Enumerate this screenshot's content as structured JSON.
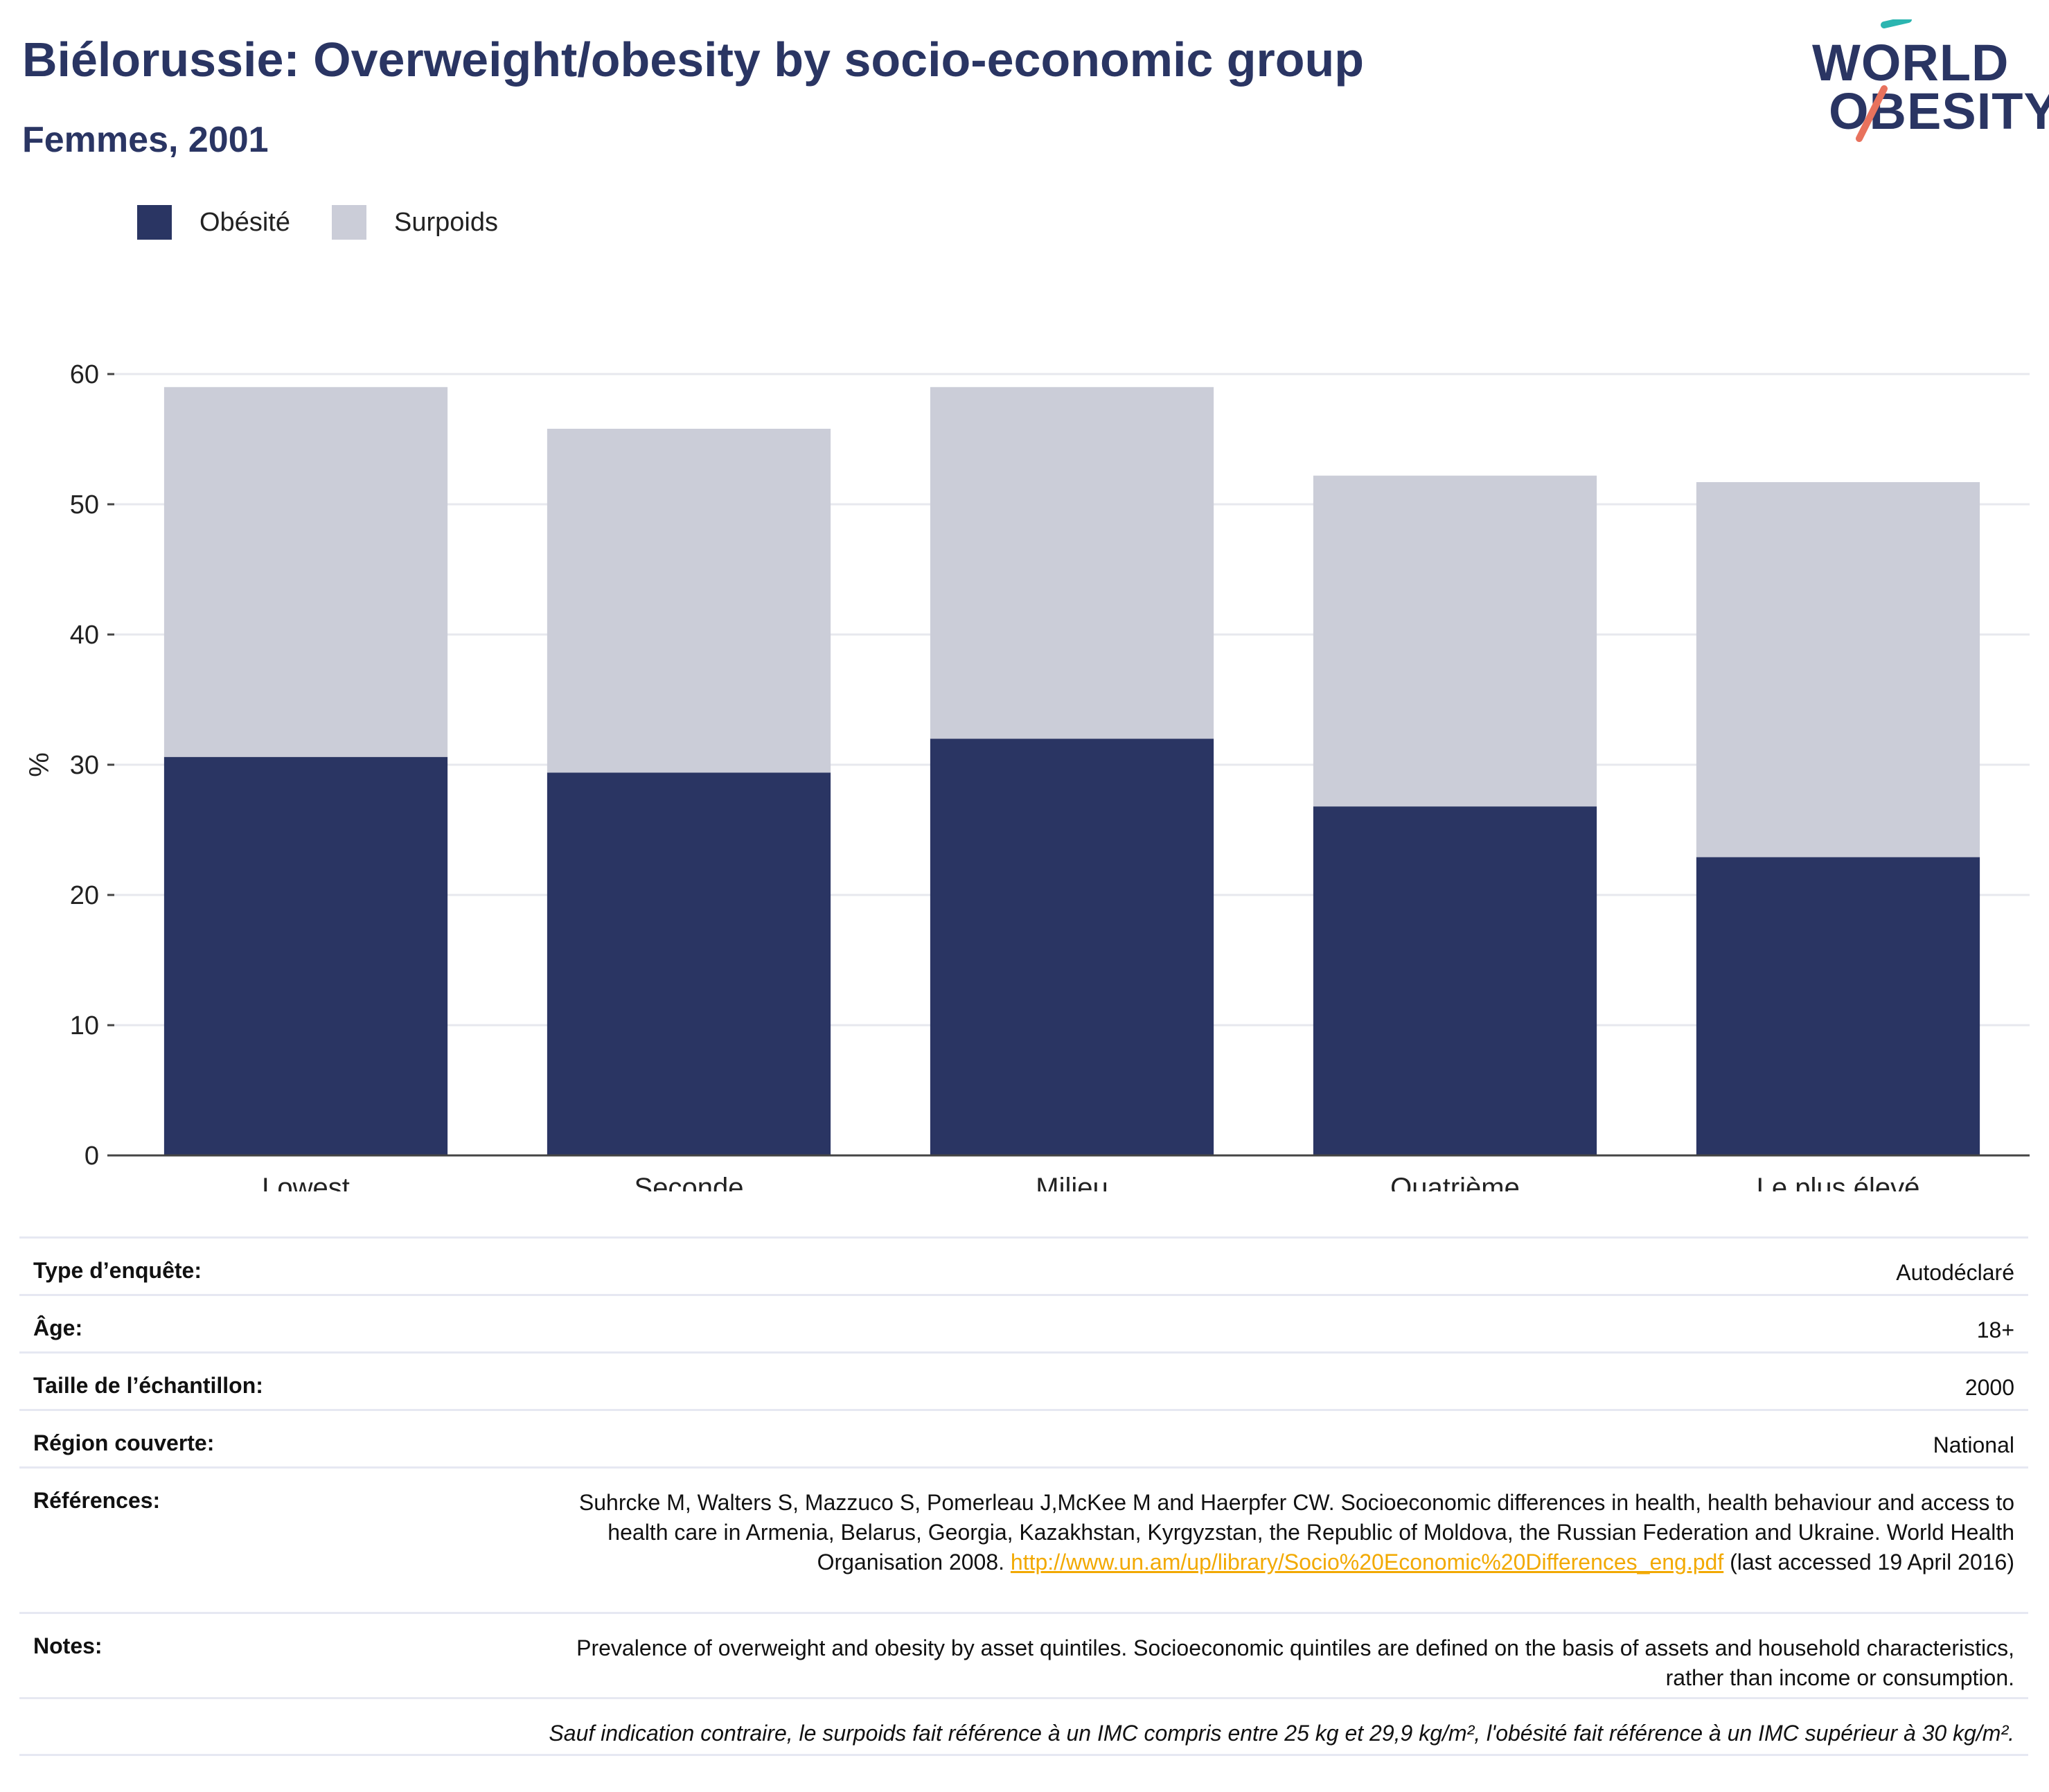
{
  "header": {
    "title": "Biélorussie: Overweight/obesity by socio-economic group",
    "subtitle": "Femmes, 2001"
  },
  "logo": {
    "line1": "WORLD",
    "line2": "OBESITY"
  },
  "legend": [
    {
      "label": "Obésité",
      "color": "#2a3563"
    },
    {
      "label": "Surpoids",
      "color": "#cbcdd8"
    }
  ],
  "chart_data": {
    "type": "bar",
    "stacked": true,
    "categories": [
      "Lowest",
      "Seconde",
      "Milieu",
      "Quatrième",
      "Le plus élevé"
    ],
    "series": [
      {
        "name": "Obésité",
        "values": [
          30.6,
          29.4,
          32.0,
          26.8,
          22.9
        ],
        "color": "#2a3563"
      },
      {
        "name": "Surpoids",
        "values": [
          28.4,
          26.4,
          27.0,
          25.4,
          28.8
        ],
        "color": "#cbcdd8"
      }
    ],
    "ylabel": "%",
    "ylim": [
      0,
      60
    ],
    "yticks": [
      0,
      10,
      20,
      30,
      40,
      50,
      60
    ],
    "grid": true,
    "legend_position": "top-left"
  },
  "info": {
    "survey_type": {
      "label": "Type d’enquête:",
      "value": "Autodéclaré"
    },
    "age": {
      "label": "Âge:",
      "value": "18+"
    },
    "sample_size": {
      "label": "Taille de l’échantillon:",
      "value": "2000"
    },
    "region": {
      "label": "Région couverte:",
      "value": "National"
    },
    "references": {
      "label": "Références:",
      "text1": "Suhrcke M, Walters S, Mazzuco S, Pomerleau J,McKee M and Haerpfer CW. Socioeconomic differences in health, health behaviour and access to health care in Armenia, Belarus, Georgia, Kazakhstan, Kyrgyzstan, the Republic of Moldova, the Russian Federation and Ukraine. World Health Organisation 2008. ",
      "link": "http://www.un.am/up/library/Socio%20Economic%20Differences_eng.pdf",
      "text2": " (last accessed 19 April 2016)"
    },
    "notes": {
      "label": "Notes:",
      "value": "Prevalence of overweight and obesity by asset quintiles. Socioeconomic quintiles are defined on the basis of assets and household characteristics, rather than income or consumption."
    },
    "footnote": "Sauf indication contraire, le surpoids fait référence à un IMC compris entre 25 kg et 29,9 kg/m², l'obésité fait référence à un IMC supérieur à 30 kg/m²."
  }
}
